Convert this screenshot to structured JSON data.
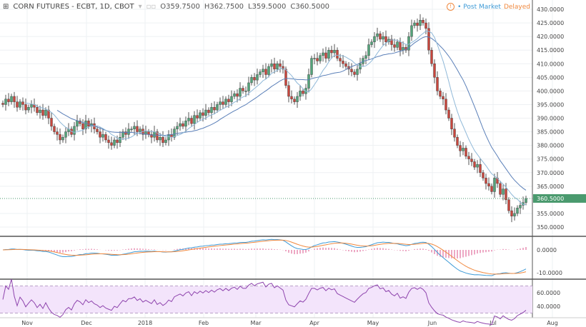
{
  "header": {
    "symbol": "CORN FUTURES - ECBT, 1D, CBOT",
    "open": "O359.7500",
    "high": "H362.7500",
    "low": "L359.5000",
    "close": "C360.5000"
  },
  "status": {
    "market": "Post Market",
    "delay": "Delayed",
    "colors": {
      "market": "#3d9ad6",
      "delay": "#f0883e"
    }
  },
  "colors": {
    "up": "#53a47a",
    "down": "#c9463d",
    "ma_slow": "#5a7fb8",
    "ma_fast": "#8fb8d8",
    "macd": "#3d9ad6",
    "signal": "#f0883e",
    "hist": "#e78bb0",
    "rsi": "#8e44ad",
    "rsi_band": "#f3e4fb",
    "last_price": "#4a9a6e"
  },
  "chart_data": {
    "type": "candlestick",
    "title": "CORN FUTURES - ECBT, 1D, CBOT",
    "ylim": [
      347,
      431
    ],
    "price_ticks": [
      "430.0000",
      "425.0000",
      "420.0000",
      "415.0000",
      "410.0000",
      "405.0000",
      "400.0000",
      "395.0000",
      "390.0000",
      "385.0000",
      "380.0000",
      "375.0000",
      "370.0000",
      "365.0000",
      "355.0000",
      "350.0000"
    ],
    "last_price": "360.5000",
    "x_ticks": [
      "Nov",
      "Dec",
      "2018",
      "Feb",
      "Mar",
      "Apr",
      "May",
      "Jun",
      "Jul",
      "Aug"
    ],
    "closes": [
      395,
      397,
      396,
      398,
      396,
      394,
      396,
      395,
      393,
      394,
      395,
      394,
      392,
      393,
      391,
      393,
      390,
      387,
      385,
      384,
      382,
      383,
      385,
      386,
      384,
      387,
      389,
      388,
      386,
      389,
      387,
      388,
      386,
      385,
      383,
      384,
      382,
      381,
      380,
      382,
      381,
      383,
      385,
      384,
      386,
      386,
      387,
      385,
      386,
      384,
      385,
      384,
      383,
      385,
      382,
      383,
      381,
      382,
      384,
      383,
      386,
      387,
      388,
      387,
      389,
      390,
      388,
      391,
      390,
      392,
      391,
      393,
      392,
      394,
      393,
      395,
      396,
      395,
      397,
      396,
      398,
      399,
      398,
      401,
      400,
      400,
      403,
      405,
      404,
      406,
      407,
      408,
      406,
      409,
      410,
      408,
      410,
      409,
      408,
      402,
      398,
      397,
      396,
      398,
      400,
      399,
      401,
      406,
      412,
      412,
      411,
      413,
      414,
      412,
      415,
      414,
      415,
      412,
      411,
      410,
      409,
      408,
      407,
      406,
      408,
      410,
      412,
      413,
      417,
      418,
      420,
      421,
      419,
      420,
      418,
      419,
      417,
      416,
      418,
      415,
      416,
      415,
      420,
      424,
      425,
      424,
      426,
      425,
      423,
      415,
      410,
      405,
      400,
      398,
      397,
      393,
      390,
      386,
      383,
      380,
      378,
      379,
      376,
      375,
      374,
      372,
      373,
      370,
      368,
      366,
      365,
      363,
      368,
      366,
      362,
      364,
      360,
      356,
      354,
      355,
      357,
      358,
      359,
      360.5
    ],
    "macd_ticks": [
      "0.0000",
      "-10.0000"
    ],
    "rsi_ticks": [
      "60.0000",
      "40.0000"
    ]
  }
}
